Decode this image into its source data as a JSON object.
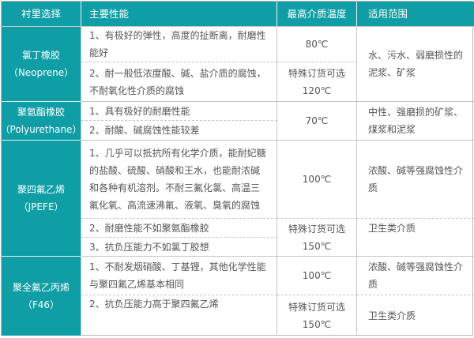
{
  "colors": {
    "header_bg": "#0f9ea5",
    "header_text": "#ffffff",
    "text": "#555555",
    "border": "#c6c6c6"
  },
  "headers": [
    "衬里选择",
    "主要性能",
    "最高介质温度",
    "适用范围"
  ],
  "neoprene": {
    "name": "氯丁橡胶\n（Neoprene）",
    "prop1": "1、有极好的弹性，高度的扯断离，耐磨性\n能好",
    "prop2": "2、耐一般低浓度酸、碱、盐介质的腐蚀，\n不耐氧化性介质的腐蚀",
    "temp1": "80℃",
    "temp2": "特殊订货可选\n120℃",
    "scope": "水、污水、弱磨损性的\n泥浆、矿浆"
  },
  "polyurethane": {
    "name": "聚氨酯橡胶\n（Polyurethane）",
    "prop1": "1、具有极好的耐磨性能",
    "prop2": "2、耐酸、碱腐蚀性能较差",
    "temp": "70℃",
    "scope": "中性、强磨损的矿浆、\n煤浆和泥浆"
  },
  "ptfe": {
    "name": "聚四氟乙烯\n（JPEFE）",
    "prop1": "1、几乎可以抵抗所有化学介质，能耐妃糖\n的盐酸、硫酸、硝酸和王水，也能耐浓碱\n和各种有机溶剂。不耐三氟化氯、高温三\n氟化氧、高流速沸氟、液氧、臭氧的腐蚀",
    "prop2": "2、耐磨性能不如聚氨酯橡胶",
    "prop3": "3、抗负压能力不如氯丁胶想",
    "temp1": "100℃",
    "temp2": "特殊订货可选\n150℃",
    "scope1": "浓酸、碱等强腐蚀性介\n质",
    "scope2": "卫生类介质"
  },
  "f46": {
    "name": "聚全氟乙丙烯\n（F46）",
    "prop1": "1、不耐发烟硝酸、丁基锂，其他化学性能\n与聚四氟乙烯基本相同",
    "prop2": "2、抗负压能力高于聚四氟乙烯",
    "temp1": "100℃",
    "temp2": "特殊订货可选\n150℃",
    "scope1": "浓酸、碱等强腐蚀性介\n质",
    "scope2": "卫生类介质"
  }
}
